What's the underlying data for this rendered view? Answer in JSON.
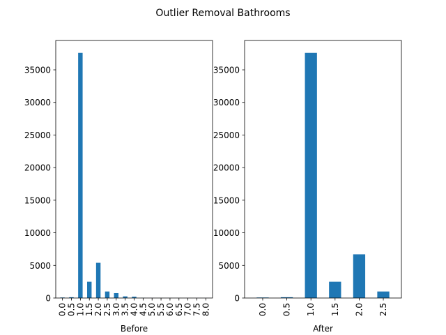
{
  "suptitle": "Outlier Removal Bathrooms",
  "bar_color": "#1f77b4",
  "chart_data": [
    {
      "type": "bar",
      "xlabel": "Before",
      "ylabel": "",
      "ylim": [
        0,
        39500
      ],
      "yticks": [
        0,
        5000,
        10000,
        15000,
        20000,
        25000,
        30000,
        35000
      ],
      "categories": [
        "0.0",
        "0.5",
        "1.0",
        "1.5",
        "2.0",
        "2.5",
        "3.0",
        "3.5",
        "4.0",
        "4.5",
        "5.0",
        "5.5",
        "6.0",
        "6.5",
        "7.0",
        "7.5",
        "8.0"
      ],
      "values": [
        80,
        120,
        37600,
        2500,
        5400,
        1000,
        750,
        250,
        200,
        20,
        10,
        5,
        5,
        3,
        3,
        2,
        2
      ]
    },
    {
      "type": "bar",
      "xlabel": "After",
      "ylabel": "",
      "ylim": [
        0,
        39500
      ],
      "yticks": [
        0,
        5000,
        10000,
        15000,
        20000,
        25000,
        30000,
        35000
      ],
      "categories": [
        "0.0",
        "0.5",
        "1.0",
        "1.5",
        "2.0",
        "2.5"
      ],
      "values": [
        80,
        120,
        37600,
        2500,
        6700,
        1000
      ]
    }
  ]
}
